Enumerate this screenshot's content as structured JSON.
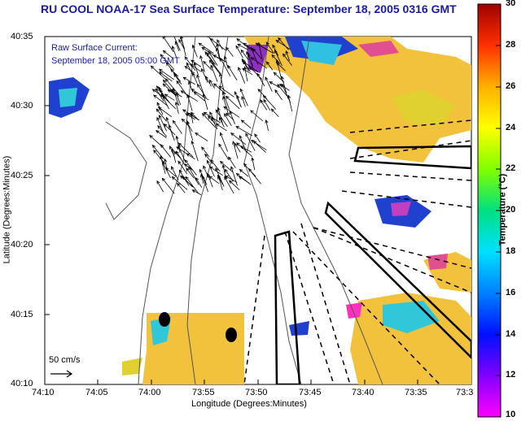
{
  "title": "RU COOL  NOAA-17  Sea Surface Temperature:  September 18, 2005 0316 GMT",
  "current_label": "Raw Surface Current:",
  "current_time": "September 18, 2005 05:00 GMT",
  "xlabel": "Longitude (Degrees:Minutes)",
  "ylabel": "Latitude (Degrees:Minutes)",
  "colorbar_label": "Temperature (°C)",
  "scale_label": "50 cm/s",
  "lat_ticks": [
    "40:35",
    "40:30",
    "40:25",
    "40:20",
    "40:15",
    "40:10"
  ],
  "lon_ticks": [
    "74:10",
    "74:05",
    "74:00",
    "73:55",
    "73:50",
    "73:45",
    "73:40",
    "73:35",
    "73:3"
  ],
  "colorbar_ticks": [
    "30",
    "28",
    "26",
    "24",
    "22",
    "20",
    "18",
    "16",
    "14",
    "12",
    "10"
  ],
  "colors": {
    "title": "#1a1aaa",
    "sst_warm": "#f5c842",
    "sst_mid": "#e0d030",
    "sst_cool": "#30c8d8",
    "sst_cold": "#2030d0"
  }
}
